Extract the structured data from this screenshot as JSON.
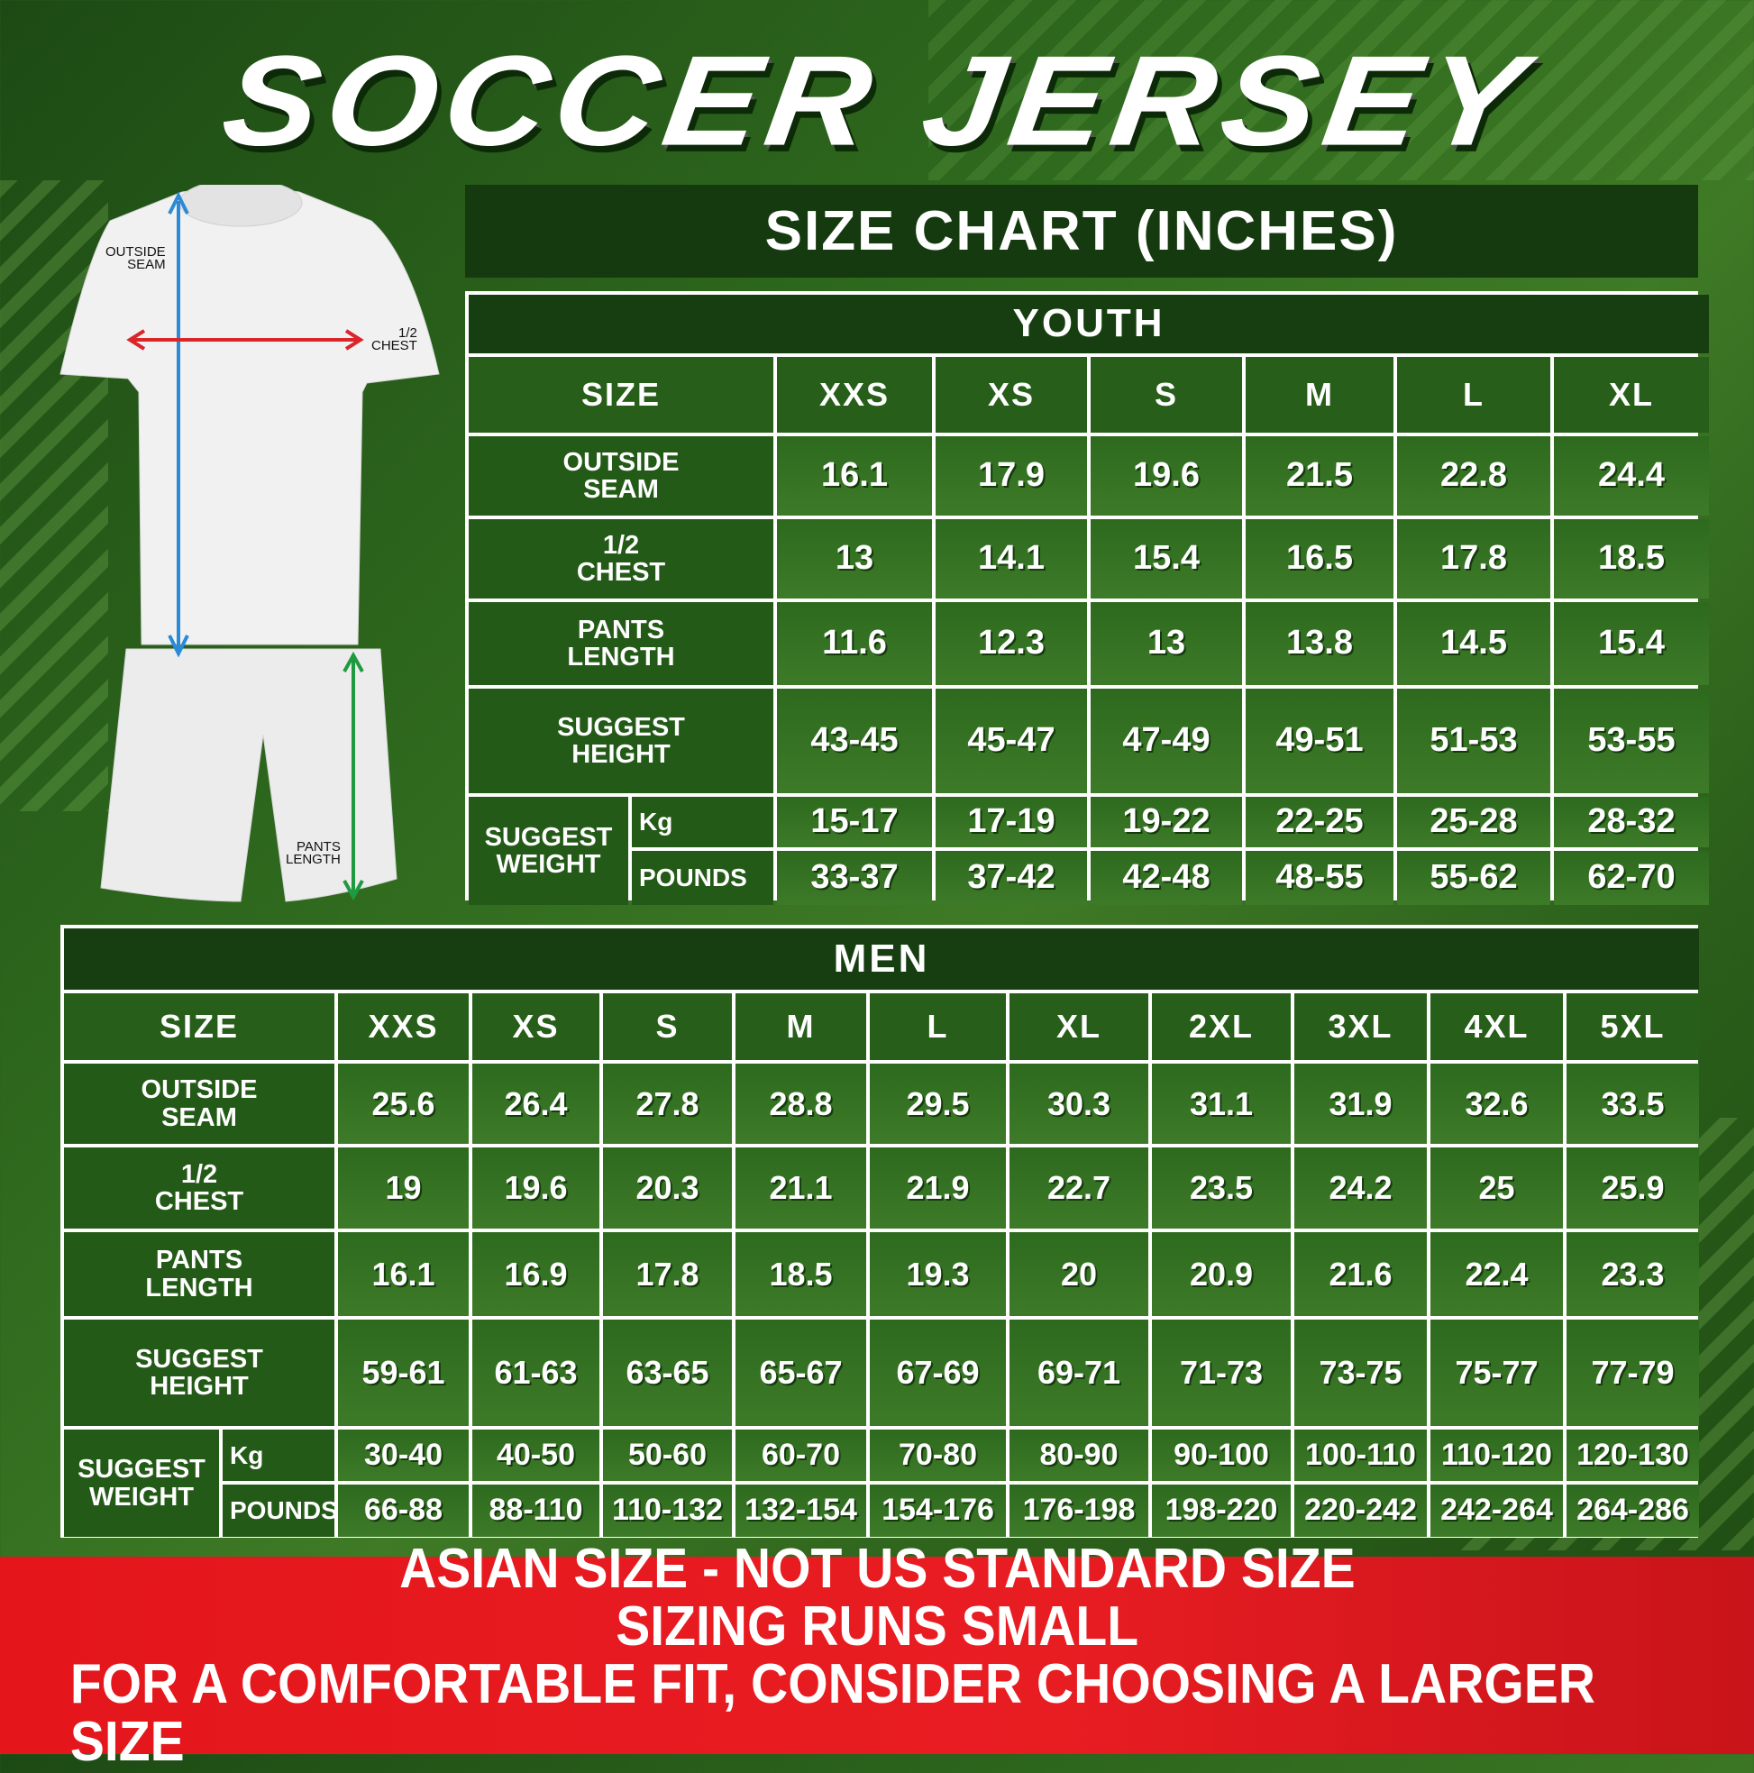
{
  "title": "SOCCER JERSEY",
  "chart_header": "SIZE CHART (INCHES)",
  "figure": {
    "outside_seam": "OUTSIDE\nSEAM",
    "half_chest": "1/2\nCHEST",
    "pants_length": "PANTS\nLENGTH",
    "colors": {
      "seam_arrow": "#2a8ad6",
      "chest_arrow": "#d8262a",
      "pants_arrow": "#1f9a40"
    }
  },
  "youth": {
    "title": "YOUTH",
    "size_label": "SIZE",
    "sizes": [
      "XXS",
      "XS",
      "S",
      "M",
      "L",
      "XL"
    ],
    "rows": [
      {
        "label": "OUTSIDE\nSEAM",
        "values": [
          "16.1",
          "17.9",
          "19.6",
          "21.5",
          "22.8",
          "24.4"
        ]
      },
      {
        "label": "1/2\nCHEST",
        "values": [
          "13",
          "14.1",
          "15.4",
          "16.5",
          "17.8",
          "18.5"
        ]
      },
      {
        "label": "PANTS\nLENGTH",
        "values": [
          "11.6",
          "12.3",
          "13",
          "13.8",
          "14.5",
          "15.4"
        ]
      },
      {
        "label": "SUGGEST\nHEIGHT",
        "values": [
          "43-45",
          "45-47",
          "47-49",
          "49-51",
          "51-53",
          "53-55"
        ]
      }
    ],
    "weight_label": "SUGGEST\nWEIGHT",
    "kg_label": "Kg",
    "kg": [
      "15-17",
      "17-19",
      "19-22",
      "22-25",
      "25-28",
      "28-32"
    ],
    "lbs_label": "POUNDS",
    "lbs": [
      "33-37",
      "37-42",
      "42-48",
      "48-55",
      "55-62",
      "62-70"
    ]
  },
  "men": {
    "title": "MEN",
    "size_label": "SIZE",
    "sizes": [
      "XXS",
      "XS",
      "S",
      "M",
      "L",
      "XL",
      "2XL",
      "3XL",
      "4XL",
      "5XL"
    ],
    "rows": [
      {
        "label": "OUTSIDE\nSEAM",
        "values": [
          "25.6",
          "26.4",
          "27.8",
          "28.8",
          "29.5",
          "30.3",
          "31.1",
          "31.9",
          "32.6",
          "33.5"
        ]
      },
      {
        "label": "1/2\nCHEST",
        "values": [
          "19",
          "19.6",
          "20.3",
          "21.1",
          "21.9",
          "22.7",
          "23.5",
          "24.2",
          "25",
          "25.9"
        ]
      },
      {
        "label": "PANTS\nLENGTH",
        "values": [
          "16.1",
          "16.9",
          "17.8",
          "18.5",
          "19.3",
          "20",
          "20.9",
          "21.6",
          "22.4",
          "23.3"
        ]
      },
      {
        "label": "SUGGEST\nHEIGHT",
        "values": [
          "59-61",
          "61-63",
          "63-65",
          "65-67",
          "67-69",
          "69-71",
          "71-73",
          "73-75",
          "75-77",
          "77-79"
        ]
      }
    ],
    "weight_label": "SUGGEST\nWEIGHT",
    "kg_label": "Kg",
    "kg": [
      "30-40",
      "40-50",
      "50-60",
      "60-70",
      "70-80",
      "80-90",
      "90-100",
      "100-110",
      "110-120",
      "120-130"
    ],
    "lbs_label": "POUNDS",
    "lbs": [
      "66-88",
      "88-110",
      "110-132",
      "132-154",
      "154-176",
      "176-198",
      "198-220",
      "220-242",
      "242-264",
      "264-286"
    ]
  },
  "banner": {
    "line1": "ASIAN SIZE - NOT US STANDARD SIZE",
    "line2": "SIZING RUNS SMALL",
    "line3": "FOR A COMFORTABLE FIT, CONSIDER CHOOSING A LARGER SIZE",
    "color": "#e4161c"
  }
}
